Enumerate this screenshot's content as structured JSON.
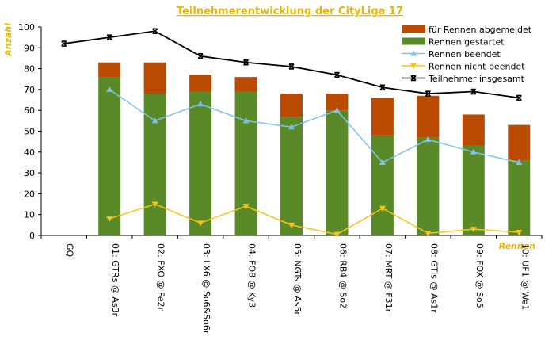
{
  "chart_data": {
    "type": "bar",
    "title": "Teilnehmerentwicklung der CityLiga 17",
    "xlabel": "Rennen",
    "ylabel": "Anzahl",
    "ylim": [
      0,
      100
    ],
    "yticks": [
      0,
      10,
      20,
      30,
      40,
      50,
      60,
      70,
      80,
      90,
      100
    ],
    "grid": false,
    "legend_position": "top-right",
    "categories": [
      "GQ",
      "01: GTRs @ As3r",
      "02: FXO @ Fe2r",
      "03: LX6 @ So6&So6r",
      "04: FO8 @ Ky3",
      "05: NGTs @ As5r",
      "06: RB4 @ So2",
      "07: MRT @ F31r",
      "08: GTIs @ As1r",
      "09: FOX @ So5",
      "10: UF1 @ We1"
    ],
    "series": [
      {
        "name": "für Rennen abgemeldet",
        "kind": "stacked-bar",
        "color": "#b94a00",
        "values": [
          null,
          7,
          15,
          8,
          7,
          11,
          8,
          18,
          20,
          15,
          17
        ]
      },
      {
        "name": "Rennen gestartet",
        "kind": "stacked-bar",
        "color": "#5a8a28",
        "values": [
          null,
          76,
          68,
          69,
          69,
          57,
          60,
          48,
          47,
          43,
          36
        ]
      },
      {
        "name": "Rennen beendet",
        "kind": "line",
        "marker": "triangle-up",
        "color": "#7ec3f0",
        "values": [
          null,
          70,
          55,
          63,
          55,
          52,
          60,
          35,
          46,
          40,
          35
        ]
      },
      {
        "name": "Rennen nicht beendet",
        "kind": "line",
        "marker": "triangle-down",
        "color": "#f5c518",
        "values": [
          null,
          8,
          15,
          6,
          14,
          5,
          0.5,
          13,
          1,
          3,
          1.5
        ]
      },
      {
        "name": "Teilnehmer insgesamt",
        "kind": "line",
        "marker": "x",
        "color": "#000000",
        "values": [
          92,
          95,
          98,
          86,
          83,
          81,
          77,
          71,
          68,
          69,
          66
        ]
      }
    ]
  }
}
